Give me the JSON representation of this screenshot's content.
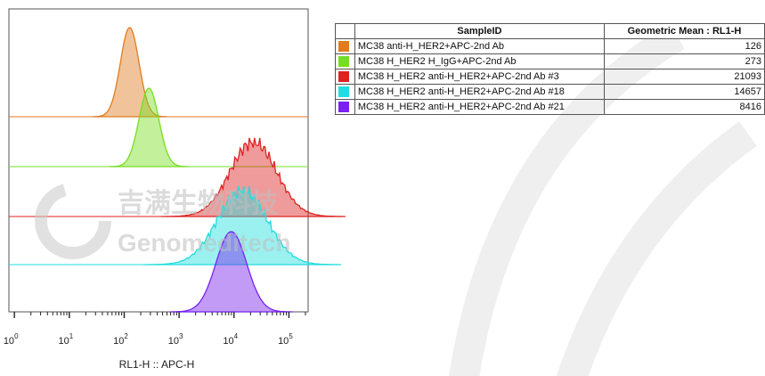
{
  "chart_data": {
    "type": "histogram-overlay",
    "xlabel": "RL1-H :: APC-H",
    "x_scale": "log",
    "x_ticks": [
      {
        "base": "10",
        "exp": "0",
        "value": 1
      },
      {
        "base": "10",
        "exp": "1",
        "value": 10
      },
      {
        "base": "10",
        "exp": "2",
        "value": 100
      },
      {
        "base": "10",
        "exp": "3",
        "value": 1000
      },
      {
        "base": "10",
        "exp": "4",
        "value": 10000
      },
      {
        "base": "10",
        "exp": "5",
        "value": 100000
      }
    ],
    "table_header": {
      "sample_id": "SampleID",
      "metric": "Geometric Mean : RL1-H"
    },
    "series": [
      {
        "name": "MC38 anti-H_HER2+APC-2nd Ab",
        "color": "#e07b20",
        "geometric_mean": "126",
        "peak_log10": 2.1,
        "width_log10": 0.17
      },
      {
        "name": "MC38 H_HER2 H_IgG+APC-2nd Ab",
        "color": "#77dd22",
        "geometric_mean": "273",
        "peak_log10": 2.45,
        "width_log10": 0.18
      },
      {
        "name": "MC38 H_HER2 anti-H_HER2+APC-2nd Ab #3",
        "color": "#dd2222",
        "geometric_mean": "21093",
        "peak_log10": 4.35,
        "width_log10": 0.42
      },
      {
        "name": "MC38 H_HER2 anti-H_HER2+APC-2nd Ab #18",
        "color": "#22dddd",
        "geometric_mean": "14657",
        "peak_log10": 4.15,
        "width_log10": 0.45
      },
      {
        "name": "MC38 H_HER2 anti-H_HER2+APC-2nd Ab #21",
        "color": "#7722ee",
        "geometric_mean": "8416",
        "peak_log10": 3.95,
        "width_log10": 0.28
      }
    ]
  },
  "watermark": {
    "cn": "吉满生物科技",
    "en": "Genomeditech"
  }
}
